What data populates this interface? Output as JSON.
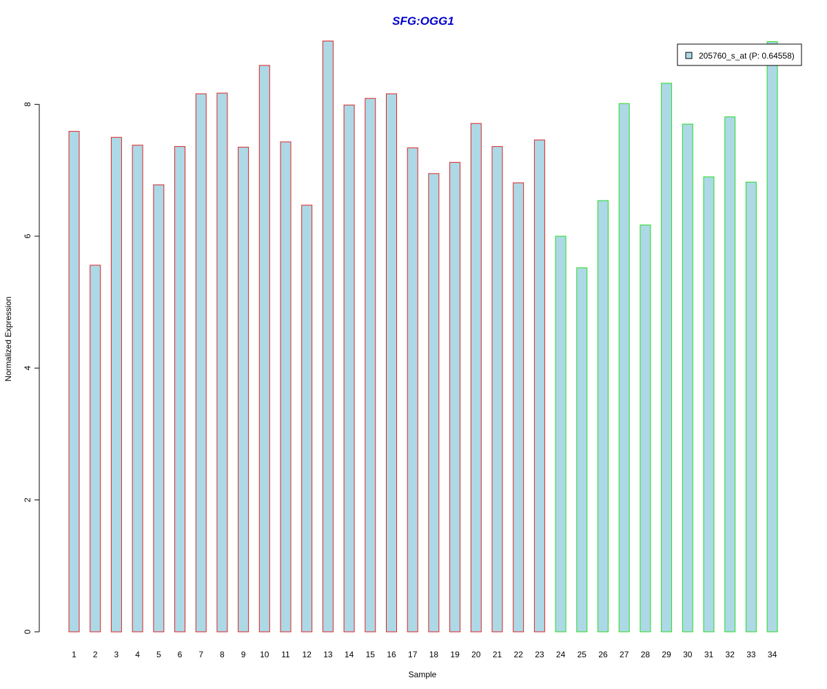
{
  "chart_data": {
    "type": "bar",
    "title": "SFG:OGG1",
    "xlabel": "Sample",
    "ylabel": "Normalized Expression",
    "ylim": [
      0,
      9
    ],
    "yticks": [
      0,
      2,
      4,
      6,
      8
    ],
    "grid": false,
    "categories": [
      "1",
      "2",
      "3",
      "4",
      "5",
      "6",
      "7",
      "8",
      "9",
      "10",
      "11",
      "12",
      "13",
      "14",
      "15",
      "16",
      "17",
      "18",
      "19",
      "20",
      "21",
      "22",
      "23",
      "24",
      "25",
      "26",
      "27",
      "28",
      "29",
      "30",
      "31",
      "32",
      "33",
      "34"
    ],
    "values": [
      7.59,
      5.56,
      7.5,
      7.38,
      6.78,
      7.36,
      8.16,
      8.17,
      7.35,
      8.59,
      7.43,
      6.47,
      8.96,
      7.99,
      8.09,
      8.16,
      7.34,
      6.95,
      7.12,
      7.71,
      7.36,
      6.81,
      7.46,
      6.0,
      5.52,
      6.54,
      8.01,
      6.17,
      8.32,
      7.7,
      6.9,
      7.81,
      6.82,
      8.95
    ],
    "groups": [
      {
        "from": 1,
        "to": 23,
        "border_color": "#dd2222"
      },
      {
        "from": 24,
        "to": 34,
        "border_color": "#22dd22"
      }
    ],
    "fill_color": "#add8e6",
    "title_color": "#0000cc",
    "legend": {
      "position": "top-right",
      "entries": [
        {
          "label": "205760_s_at (P: 0.64558)",
          "color": "#add8e6"
        }
      ]
    }
  }
}
